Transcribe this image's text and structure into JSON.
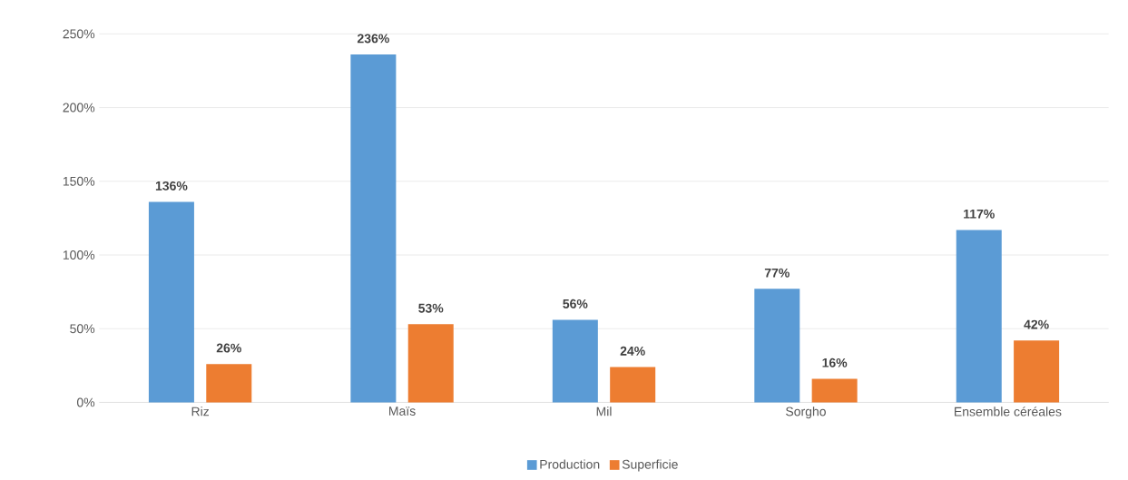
{
  "chart_data": {
    "type": "bar",
    "categories": [
      "Riz",
      "Maïs",
      "Mil",
      "Sorgho",
      "Ensemble céréales"
    ],
    "series": [
      {
        "name": "Production",
        "color": "#5b9bd5",
        "values": [
          136,
          236,
          56,
          77,
          117
        ],
        "value_labels": [
          "136%",
          "236%",
          "56%",
          "77%",
          "117%"
        ]
      },
      {
        "name": "Superficie",
        "color": "#ed7d31",
        "values": [
          26,
          53,
          24,
          16,
          42
        ],
        "value_labels": [
          "26%",
          "53%",
          "24%",
          "16%",
          "42%"
        ]
      }
    ],
    "ylim": [
      0,
      250
    ],
    "yticks": [
      {
        "value": 0,
        "label": "0%"
      },
      {
        "value": 50,
        "label": "50%"
      },
      {
        "value": 100,
        "label": "100%"
      },
      {
        "value": 150,
        "label": "150%"
      },
      {
        "value": 200,
        "label": "200%"
      },
      {
        "value": 250,
        "label": "250%"
      }
    ],
    "grid": "y",
    "legend": "bottom"
  }
}
